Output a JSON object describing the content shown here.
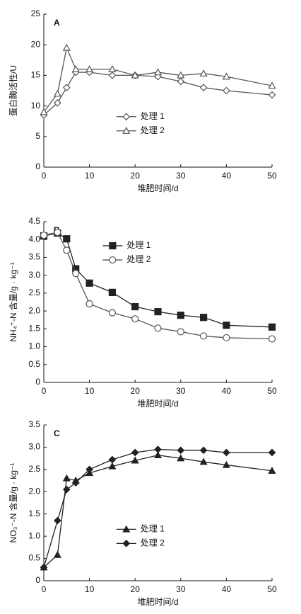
{
  "chart_data": [
    {
      "type": "line",
      "label": "A",
      "xlabel": "堆肥时间/d",
      "ylabel": "蛋白酶活性/U",
      "x": [
        0,
        3,
        5,
        7,
        10,
        15,
        20,
        25,
        30,
        35,
        40,
        50
      ],
      "series": [
        {
          "name": "处理 1",
          "color": "#555555",
          "marker": "diamond-open",
          "values": [
            8.5,
            10.5,
            13,
            15.5,
            15.5,
            15,
            15,
            14.8,
            14,
            13,
            12.5,
            11.8
          ]
        },
        {
          "name": "处理 2",
          "color": "#555555",
          "marker": "triangle-open",
          "values": [
            9,
            12,
            19.5,
            16,
            16,
            16,
            15,
            15.5,
            15,
            15.3,
            14.8,
            13.3
          ]
        }
      ],
      "xlim": [
        0,
        50
      ],
      "xticks": [
        0,
        10,
        20,
        30,
        40,
        50
      ],
      "ylim": [
        0,
        25
      ],
      "yticks": [
        0,
        5,
        10,
        15,
        20,
        25
      ],
      "legend": "center"
    },
    {
      "type": "line",
      "label": "B",
      "xlabel": "堆肥时间/d",
      "ylabel": "NH₄⁺-N 含量/g · kg⁻¹",
      "x": [
        0,
        3,
        5,
        7,
        10,
        15,
        20,
        25,
        30,
        35,
        40,
        50
      ],
      "series": [
        {
          "name": "处理 1",
          "color": "#222222",
          "marker": "square-filled",
          "values": [
            4.1,
            4.18,
            4.02,
            3.18,
            2.78,
            2.52,
            2.12,
            1.98,
            1.88,
            1.82,
            1.6,
            1.55
          ]
        },
        {
          "name": "处理 2",
          "color": "#555555",
          "marker": "circle-open",
          "values": [
            4.12,
            4.2,
            3.7,
            3.05,
            2.2,
            1.95,
            1.78,
            1.52,
            1.42,
            1.3,
            1.25,
            1.22
          ]
        }
      ],
      "xlim": [
        0,
        50
      ],
      "xticks": [
        0,
        10,
        20,
        30,
        40,
        50
      ],
      "ylim": [
        0,
        4.5
      ],
      "yticks": [
        0,
        0.5,
        {
          "value": 1,
          "label": "1.0"
        },
        1.5,
        {
          "value": 2,
          "label": "2.0"
        },
        2.5,
        {
          "value": 3,
          "label": "3.0"
        },
        3.5,
        {
          "value": 4,
          "label": "4.0"
        },
        4.5
      ],
      "legend": "upper center"
    },
    {
      "type": "line",
      "label": "C",
      "xlabel": "堆肥时间/d",
      "ylabel": "NO₃⁻-N 含量/g · kg⁻¹",
      "x": [
        0,
        3,
        5,
        7,
        10,
        15,
        20,
        25,
        30,
        35,
        40,
        50
      ],
      "series": [
        {
          "name": "处理 1",
          "color": "#222222",
          "marker": "triangle-filled",
          "values": [
            0.3,
            0.58,
            2.3,
            2.25,
            2.42,
            2.57,
            2.7,
            2.82,
            2.75,
            2.67,
            2.6,
            2.47
          ]
        },
        {
          "name": "处理 2",
          "color": "#222222",
          "marker": "diamond-filled",
          "values": [
            0.3,
            1.35,
            2.05,
            2.2,
            2.5,
            2.72,
            2.88,
            2.95,
            2.93,
            2.93,
            2.88,
            2.88
          ]
        }
      ],
      "xlim": [
        0,
        50
      ],
      "xticks": [
        0,
        10,
        20,
        30,
        40,
        50
      ],
      "ylim": [
        0,
        3.5
      ],
      "yticks": [
        0,
        0.5,
        {
          "value": 1,
          "label": "1.0"
        },
        1.5,
        {
          "value": 2,
          "label": "2.0"
        },
        2.5,
        {
          "value": 3,
          "label": "3.0"
        },
        3.5
      ],
      "legend": "lower center"
    }
  ]
}
